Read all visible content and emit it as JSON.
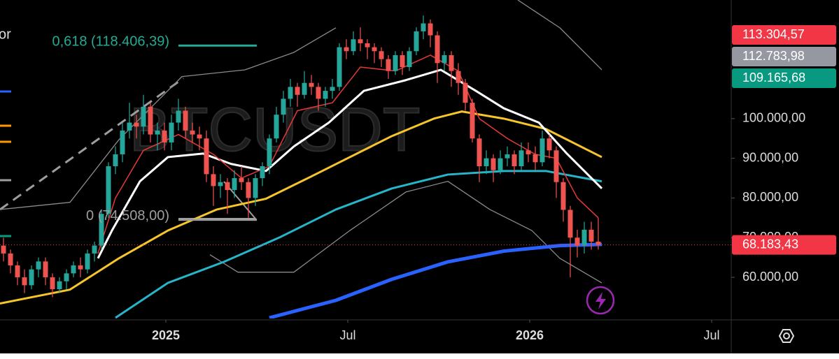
{
  "chart_data": {
    "type": "candlestick",
    "watermark": "BTCUSDT",
    "legend_fragment": "or",
    "legend_swatches": [
      "#2962ff",
      "#ff9800",
      "#ff9800",
      "#9e9e9e",
      "#089981"
    ],
    "up_color": "#26a69a",
    "down_color": "#ef5350",
    "ylim": [
      49800,
      129900
    ],
    "xlim": [
      -0.5,
      104
    ],
    "yticks": [
      {
        "value": 100000,
        "label": "100.000,00"
      },
      {
        "value": 90000,
        "label": "90.000,00"
      },
      {
        "value": 80000,
        "label": "80.000,00"
      },
      {
        "value": 70000,
        "label": "70.000,00"
      },
      {
        "value": 60000,
        "label": "60.000,00"
      }
    ],
    "xticks": [
      {
        "value": 23.2,
        "label": "2025"
      },
      {
        "value": 49.2,
        "label": "Jul"
      },
      {
        "value": 75.2,
        "label": "2026"
      },
      {
        "value": 101.2,
        "label": "Jul"
      }
    ],
    "candles": [
      [
        68000,
        70000,
        64000,
        66000
      ],
      [
        66000,
        67000,
        61000,
        63000
      ],
      [
        63000,
        64000,
        58000,
        60000
      ],
      [
        60000,
        62000,
        56000,
        58000
      ],
      [
        58000,
        63000,
        57000,
        62000
      ],
      [
        62000,
        65000,
        60000,
        64000
      ],
      [
        64000,
        65000,
        58000,
        60000
      ],
      [
        60000,
        61000,
        55000,
        57000
      ],
      [
        57000,
        60000,
        56000,
        59000
      ],
      [
        59000,
        62000,
        57000,
        61000
      ],
      [
        61000,
        64000,
        60000,
        63000
      ],
      [
        63000,
        65000,
        60000,
        62000
      ],
      [
        62000,
        67000,
        61000,
        66000
      ],
      [
        66000,
        69000,
        64000,
        68000
      ],
      [
        68000,
        77000,
        67000,
        76000
      ],
      [
        76000,
        89000,
        75000,
        88000
      ],
      [
        88000,
        93000,
        86000,
        91000
      ],
      [
        91000,
        99000,
        89000,
        97000
      ],
      [
        97000,
        104000,
        95000,
        99000
      ],
      [
        99000,
        101000,
        95000,
        98000
      ],
      [
        98000,
        106000,
        96000,
        103000
      ],
      [
        103000,
        104000,
        94000,
        96000
      ],
      [
        96000,
        99000,
        92000,
        97000
      ],
      [
        97000,
        99000,
        92000,
        94000
      ],
      [
        94000,
        101000,
        92000,
        99000
      ],
      [
        99000,
        105000,
        97000,
        102000
      ],
      [
        102000,
        103000,
        95000,
        97000
      ],
      [
        97000,
        99000,
        94000,
        96000
      ],
      [
        96000,
        98000,
        92000,
        95000
      ],
      [
        95000,
        97000,
        84000,
        86000
      ],
      [
        86000,
        88000,
        78000,
        83000
      ],
      [
        83000,
        86000,
        80000,
        84000
      ],
      [
        84000,
        85000,
        76000,
        82000
      ],
      [
        82000,
        87000,
        80000,
        85000
      ],
      [
        85000,
        88000,
        82000,
        84000
      ],
      [
        84000,
        85000,
        75000,
        80000
      ],
      [
        80000,
        86000,
        78000,
        85000
      ],
      [
        85000,
        89000,
        83000,
        88000
      ],
      [
        88000,
        96000,
        86000,
        95000
      ],
      [
        95000,
        103000,
        94000,
        101000
      ],
      [
        101000,
        107000,
        99000,
        105000
      ],
      [
        105000,
        110000,
        103000,
        108000
      ],
      [
        108000,
        109000,
        103000,
        106000
      ],
      [
        106000,
        112000,
        105000,
        109000
      ],
      [
        109000,
        111000,
        106000,
        108000
      ],
      [
        108000,
        109000,
        102000,
        105000
      ],
      [
        105000,
        108000,
        103000,
        107000
      ],
      [
        107000,
        110000,
        105000,
        108000
      ],
      [
        108000,
        119000,
        107000,
        118000
      ],
      [
        118000,
        120000,
        115000,
        117000
      ],
      [
        117000,
        122000,
        116000,
        120000
      ],
      [
        120000,
        123000,
        117000,
        119000
      ],
      [
        119000,
        120000,
        115000,
        118000
      ],
      [
        118000,
        119000,
        114000,
        117000
      ],
      [
        117000,
        118000,
        113000,
        115000
      ],
      [
        115000,
        116000,
        110000,
        112000
      ],
      [
        112000,
        117000,
        111000,
        116000
      ],
      [
        116000,
        117000,
        111000,
        113000
      ],
      [
        113000,
        118000,
        112000,
        117000
      ],
      [
        117000,
        123000,
        116000,
        122000
      ],
      [
        122000,
        126000,
        120000,
        124000
      ],
      [
        124000,
        125000,
        118000,
        121000
      ],
      [
        121000,
        122000,
        109000,
        114000
      ],
      [
        114000,
        117000,
        112000,
        116000
      ],
      [
        116000,
        117000,
        108000,
        112000
      ],
      [
        112000,
        114000,
        106000,
        109000
      ],
      [
        109000,
        110000,
        102000,
        104000
      ],
      [
        104000,
        105000,
        94000,
        95000
      ],
      [
        95000,
        96000,
        84000,
        88000
      ],
      [
        88000,
        92000,
        86000,
        90000
      ],
      [
        90000,
        91000,
        84000,
        87000
      ],
      [
        87000,
        92000,
        86000,
        90000
      ],
      [
        90000,
        93000,
        88000,
        91000
      ],
      [
        91000,
        92000,
        86000,
        88000
      ],
      [
        88000,
        94000,
        87000,
        92000
      ],
      [
        92000,
        94000,
        89000,
        91000
      ],
      [
        91000,
        93000,
        87000,
        89000
      ],
      [
        89000,
        97000,
        88000,
        95000
      ],
      [
        95000,
        96000,
        90000,
        92000
      ],
      [
        92000,
        93000,
        80000,
        84000
      ],
      [
        84000,
        85000,
        74000,
        77000
      ],
      [
        77000,
        78000,
        60000,
        70000
      ],
      [
        70000,
        72000,
        65000,
        68000
      ],
      [
        68000,
        74000,
        66000,
        72000
      ],
      [
        72000,
        74000,
        67000,
        69000
      ],
      [
        69000,
        75000,
        67000,
        68183.43
      ]
    ],
    "lines": [
      {
        "color": "#8a8a8a",
        "width": 1.3,
        "x": [
          -0.5,
          9.5,
          16.5,
          25.5,
          34.5,
          41.5,
          47.5,
          52.5,
          73.5,
          79.5,
          85.5
        ],
        "values": [
          77100,
          78900,
          94700,
          110600,
          112300,
          116700,
          122900,
          null,
          129900,
          122900,
          112300
        ]
      },
      {
        "color": "#8a8a8a",
        "width": 1.3,
        "x": [
          29.5,
          33.5,
          41.5,
          49.5,
          57.5,
          63.5,
          69.5,
          75.5,
          79.5,
          85.5
        ],
        "values": [
          65700,
          61300,
          61300,
          71800,
          81500,
          84200,
          77100,
          71800,
          64800,
          58600
        ]
      },
      {
        "color": "#2962ff",
        "width": 5,
        "x": [
          38,
          47.5,
          55.5,
          63.5,
          71.5,
          79.5,
          85.5
        ],
        "values": [
          49800,
          54200,
          59500,
          63900,
          66600,
          68000,
          68300
        ]
      },
      {
        "color": "#26b5c9",
        "width": 3,
        "x": [
          16,
          23.5,
          31.5,
          39.5,
          47.5,
          55.5,
          63.5,
          71.5,
          77.5,
          85.5
        ],
        "values": [
          49800,
          58600,
          63900,
          70100,
          77100,
          82400,
          85900,
          86800,
          86800,
          84200
        ]
      },
      {
        "color": "#f5c52a",
        "width": 3,
        "x": [
          -0.5,
          9.5,
          16.5,
          23.5,
          30.5,
          37.5,
          43.5,
          49.5,
          55.5,
          61.5,
          65.5,
          71.5,
          77.5,
          85.5
        ],
        "values": [
          53400,
          56900,
          64800,
          71800,
          77100,
          79800,
          85000,
          90300,
          95600,
          100000,
          101800,
          100000,
          97400,
          90300
        ]
      },
      {
        "color": "#ffffff",
        "width": 3,
        "x": [
          13.5,
          15.5,
          19.5,
          23.5,
          28.5,
          32.5,
          37.5,
          41.5,
          46.5,
          51.5,
          57.5,
          62.5,
          67.5,
          71.5,
          76.5,
          80.5,
          85.5
        ],
        "values": [
          64800,
          71800,
          84200,
          90300,
          91200,
          88600,
          86800,
          93000,
          99000,
          107000,
          109700,
          112300,
          107000,
          102600,
          99000,
          91200,
          82400
        ]
      },
      {
        "color": "#e53935",
        "width": 1.5,
        "x": [
          13.5,
          16,
          20,
          25,
          30,
          34,
          38,
          42,
          47,
          51,
          56,
          61,
          65,
          68,
          72,
          76,
          79,
          82,
          85
        ],
        "values": [
          66000,
          80000,
          92000,
          96000,
          91000,
          85000,
          88000,
          102000,
          104000,
          113000,
          112000,
          116000,
          112000,
          100000,
          95000,
          91000,
          90000,
          80000,
          75000
        ]
      }
    ],
    "fib_levels": [
      {
        "value": 118406.39,
        "label": "0,618 (118.406,39)",
        "color": "#22ab94"
      },
      {
        "value": 74508,
        "label": "0 (74.508,00)",
        "color": "#9e9e9e"
      }
    ],
    "price_tags": [
      {
        "value": 113304.57,
        "label": "113.304,57",
        "color": "#f23645"
      },
      {
        "value": 112783.98,
        "label": "112.783,98",
        "color": "#9598a1"
      },
      {
        "value": 109165.68,
        "label": "109.165,68",
        "color": "#089981"
      }
    ],
    "current_price": {
      "value": 68183.43,
      "label": "68.183,43",
      "color": "#f23645"
    }
  }
}
